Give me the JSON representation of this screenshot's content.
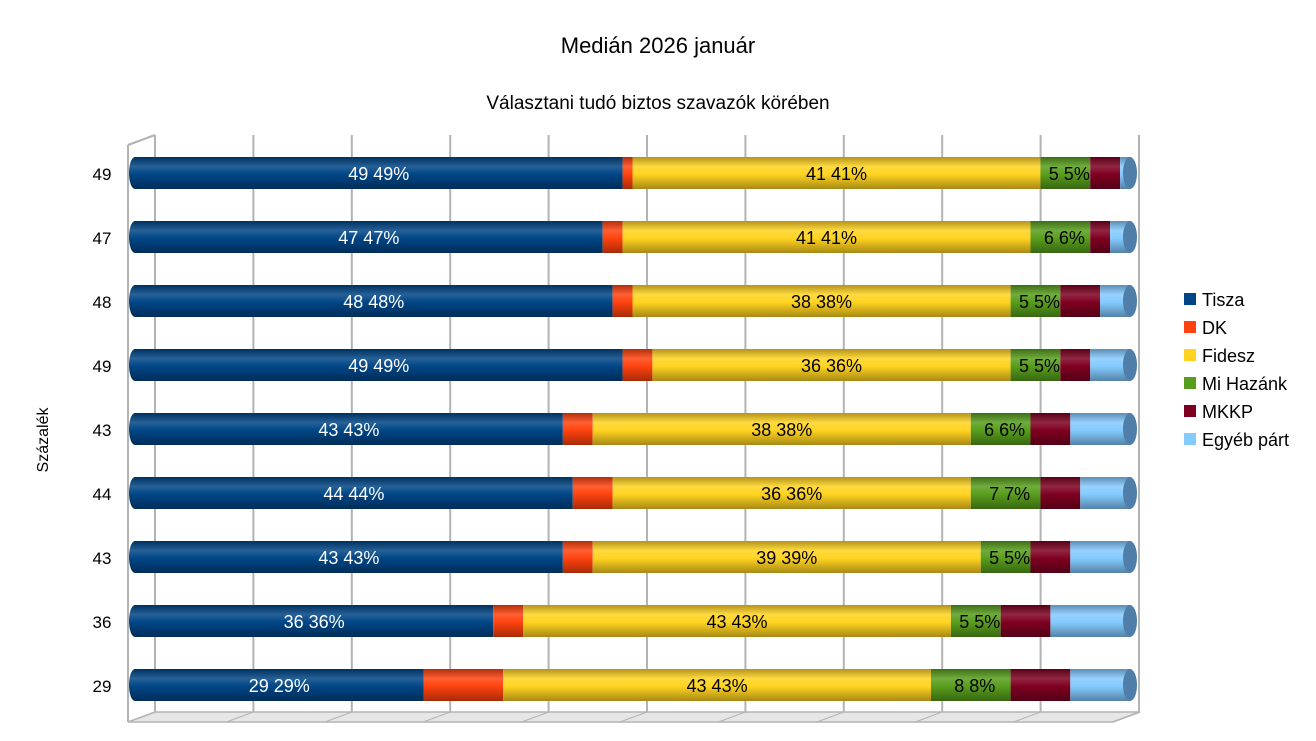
{
  "chart_data": {
    "type": "bar",
    "orientation": "horizontal",
    "stacked": true,
    "style": "3d-cylinder",
    "title": "Medián 2026 január",
    "subtitle": "Választani tudó biztos szavazók körében",
    "ylabel": "Százalék",
    "xlim": [
      0,
      100
    ],
    "grid": true,
    "legend_position": "right",
    "categories": [
      "49",
      "47",
      "48",
      "49",
      "43",
      "44",
      "43",
      "36",
      "29"
    ],
    "series": [
      {
        "name": "Tisza",
        "color": "#004586",
        "values": [
          49,
          47,
          48,
          49,
          43,
          44,
          43,
          36,
          29
        ],
        "labeled": true
      },
      {
        "name": "DK",
        "color": "#ff420e",
        "values": [
          1,
          2,
          2,
          3,
          3,
          4,
          3,
          3,
          8
        ],
        "labeled": false
      },
      {
        "name": "Fidesz",
        "color": "#ffd320",
        "values": [
          41,
          41,
          38,
          36,
          38,
          36,
          39,
          43,
          43
        ],
        "labeled": true
      },
      {
        "name": "Mi Hazánk",
        "color": "#579d1c",
        "values": [
          5,
          6,
          5,
          5,
          6,
          7,
          5,
          5,
          8
        ],
        "labeled": true
      },
      {
        "name": "MKKP",
        "color": "#7e0021",
        "values": [
          3,
          2,
          4,
          3,
          4,
          4,
          4,
          5,
          6
        ],
        "labeled": false
      },
      {
        "name": "Egyéb párt",
        "color": "#83caff",
        "values": [
          1,
          2,
          3,
          4,
          6,
          5,
          6,
          8,
          6
        ],
        "labeled": false
      }
    ]
  }
}
